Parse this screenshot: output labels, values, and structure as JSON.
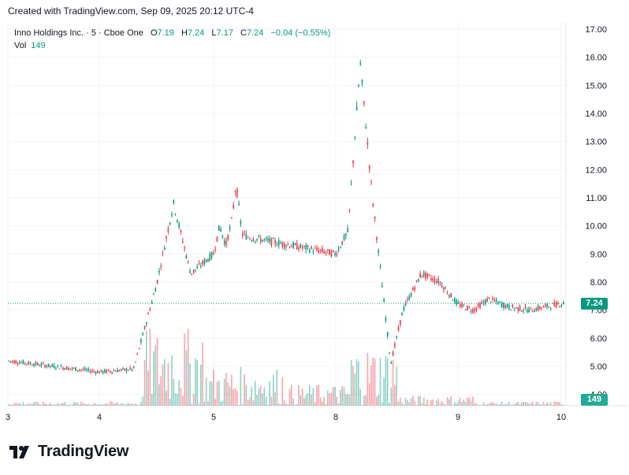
{
  "header": {
    "created_text": "Created with TradingView.com, Sep 09, 2025 20:12 UTC-4"
  },
  "legend": {
    "symbol": "Inno Holdings Inc. · 5 · Cboe One",
    "o_label": "O",
    "o_value": "7.19",
    "h_label": "H",
    "h_value": "7.24",
    "l_label": "L",
    "l_value": "7.17",
    "c_label": "C",
    "c_value": "7.24",
    "change": "−0.04 (−0.55%)",
    "vol_label": "Vol",
    "vol_value": "149"
  },
  "badges": {
    "price": "7.24",
    "volume": "149"
  },
  "footer": {
    "logo_text": "TradingView",
    "logo_icon": "tradingview-logo-icon"
  },
  "colors": {
    "up": "#089981",
    "down": "#f23645",
    "grid": "#f0f3fa",
    "text": "#131722",
    "last_price_line": "#089981"
  },
  "chart_data": {
    "type": "candlestick",
    "title": "Inno Holdings Inc. · 5 · Cboe One",
    "interval": "5",
    "y_axis": {
      "ylim": [
        3.75,
        17.15
      ],
      "ticks": [
        "4.00",
        "5.00",
        "6.00",
        "7.00",
        "8.00",
        "9.00",
        "10.00",
        "11.00",
        "12.00",
        "13.00",
        "14.00",
        "15.00",
        "16.00",
        "17.00"
      ],
      "position": "right"
    },
    "x_axis": {
      "ticks": [
        "3",
        "4",
        "5",
        "8",
        "9",
        "10"
      ]
    },
    "last_price": 7.24,
    "last_volume": 149,
    "grid": true,
    "close_series": {
      "x": [
        "3",
        "3.5",
        "4",
        "4.3",
        "4.5",
        "4.65",
        "4.8",
        "5",
        "5.15",
        "5.3",
        "5.45",
        "5.55",
        "5.7",
        "5.85",
        "8",
        "8.1",
        "8.2",
        "8.3",
        "8.45",
        "8.55",
        "8.7",
        "8.85",
        "9",
        "9.15",
        "9.3",
        "9.5",
        "9.7",
        "10"
      ],
      "close": [
        5.2,
        5.0,
        4.8,
        4.9,
        7.9,
        10.8,
        8.3,
        9.0,
        10.0,
        9.3,
        10.2,
        11.5,
        9.7,
        9.6,
        9.0,
        9.8,
        15.8,
        11.0,
        5.1,
        7.0,
        8.3,
        8.0,
        7.2,
        7.0,
        7.4,
        7.1,
        7.0,
        7.24
      ]
    },
    "volume_note": "volume histogram at bottom pane, green up / red down bars"
  }
}
